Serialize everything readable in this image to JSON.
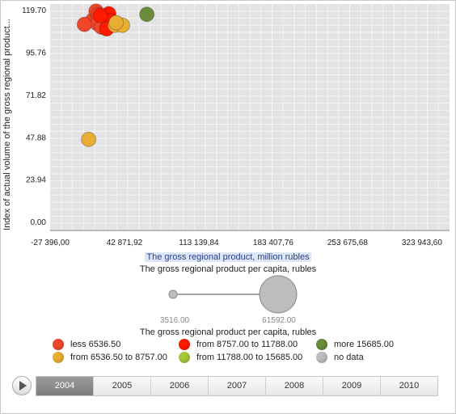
{
  "chart_data": {
    "type": "scatter",
    "xlabel": "The gross regional product, million rubles",
    "ylabel": "Index of actual volume of the gross regional product...",
    "x_ticks": [
      "-27 396,00",
      "42 871,92",
      "113 139,84",
      "183 407,76",
      "253 675,68",
      "323 943,60"
    ],
    "y_ticks": [
      "0.00",
      "23.94",
      "47.88",
      "71.82",
      "95.76",
      "119.70"
    ],
    "xlim": [
      -27396,
      350000
    ],
    "ylim": [
      -5,
      123
    ],
    "grid": true,
    "size_by": "The gross regional product per capita, rubles",
    "size_range": [
      "3516.00",
      "61592.00"
    ],
    "points": [
      {
        "x": 13000,
        "y": 114.0,
        "class": "less"
      },
      {
        "x": 16000,
        "y": 119.0,
        "class": "less"
      },
      {
        "x": 18000,
        "y": 117.0,
        "class": "less"
      },
      {
        "x": 22000,
        "y": 115.0,
        "class": "less"
      },
      {
        "x": 17000,
        "y": 112.0,
        "class": "less"
      },
      {
        "x": 24000,
        "y": 111.0,
        "class": "less"
      },
      {
        "x": 21000,
        "y": 110.0,
        "class": "less"
      },
      {
        "x": 5000,
        "y": 111.5,
        "class": "less"
      },
      {
        "x": 28000,
        "y": 117.5,
        "class": "from8757"
      },
      {
        "x": 30000,
        "y": 113.5,
        "class": "from8757"
      },
      {
        "x": 26000,
        "y": 109.0,
        "class": "from8757"
      },
      {
        "x": 20000,
        "y": 116.5,
        "class": "from8757"
      },
      {
        "x": 34000,
        "y": 111.0,
        "class": "from6536"
      },
      {
        "x": 41000,
        "y": 111.0,
        "class": "from6536"
      },
      {
        "x": 35000,
        "y": 112.5,
        "class": "from6536"
      },
      {
        "x": 9000,
        "y": 46.5,
        "class": "from6536"
      },
      {
        "x": 64000,
        "y": 117.2,
        "class": "more"
      }
    ]
  },
  "size_legend": {
    "title": "The gross regional product per capita, rubles",
    "min_label": "3516.00",
    "max_label": "61592.00"
  },
  "color_legend": {
    "title": "The gross regional product per capita, rubles",
    "items": [
      {
        "key": "less",
        "label": "less 6536.50",
        "color": "#f0472b"
      },
      {
        "key": "from6536",
        "label": "from 6536.50 to 8757.00",
        "color": "#e9ad34"
      },
      {
        "key": "from8757",
        "label": "from 8757.00 to 11788.00",
        "color": "#ff1a00"
      },
      {
        "key": "from11788",
        "label": "from 11788.00 to 15685.00",
        "color": "#a6c83a"
      },
      {
        "key": "more",
        "label": "more 15685.00",
        "color": "#6b8c3a"
      },
      {
        "key": "nodata",
        "label": "no data",
        "color": "#bdbdbd"
      }
    ]
  },
  "timeline": {
    "years": [
      "2004",
      "2005",
      "2006",
      "2007",
      "2008",
      "2009",
      "2010"
    ],
    "active_index": 0
  }
}
